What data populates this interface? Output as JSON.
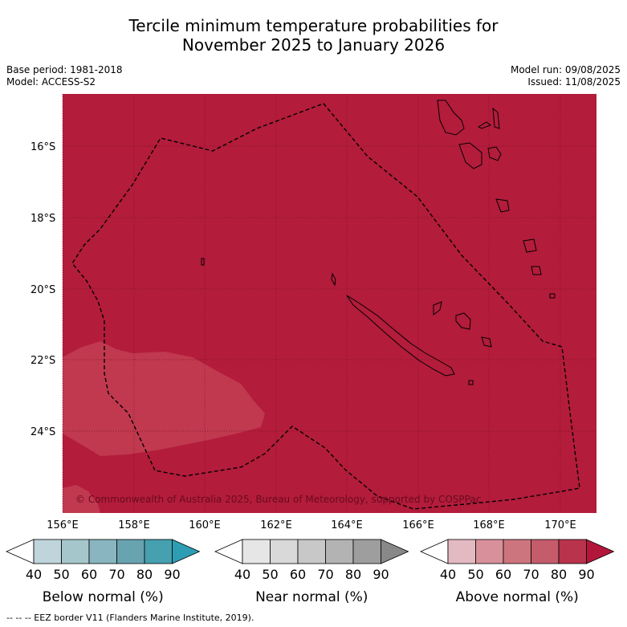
{
  "title_line1": "Tercile minimum temperature probabilities for",
  "title_line2": "November 2025 to January 2026",
  "meta_left": [
    "Base period: 1981-2018",
    "Model: ACCESS-S2"
  ],
  "meta_right": [
    "Model run: 09/08/2025",
    "Issued: 11/08/2025"
  ],
  "map": {
    "lat_labels": [
      "16°S",
      "18°S",
      "20°S",
      "22°S",
      "24°S"
    ],
    "lon_labels": [
      "156°E",
      "158°E",
      "160°E",
      "162°E",
      "164°E",
      "166°E",
      "168°E",
      "170°E"
    ],
    "copyright": "© Commonwealth of Australia 2025, Bureau of Meteorology, supported by COSPPac",
    "dominant_category": "Above normal",
    "dominant_color": "#b31c3b",
    "patch_color": "#c0394f"
  },
  "colorbars": [
    {
      "label": "Below normal (%)",
      "ticks": [
        "40",
        "50",
        "60",
        "70",
        "80",
        "90"
      ],
      "colors": [
        "#bfd5db",
        "#a5c7cc",
        "#88b5bf",
        "#68a3b0",
        "#45a0b0",
        "#2d9db3"
      ]
    },
    {
      "label": "Near normal (%)",
      "ticks": [
        "40",
        "50",
        "60",
        "70",
        "80",
        "90"
      ],
      "colors": [
        "#e6e6e6",
        "#d9d9d9",
        "#c8c8c8",
        "#b3b3b3",
        "#9e9e9e",
        "#888888"
      ]
    },
    {
      "label": "Above normal (%)",
      "ticks": [
        "40",
        "50",
        "60",
        "70",
        "80",
        "90"
      ],
      "colors": [
        "#e3b9c2",
        "#d8919a",
        "#cd757e",
        "#c45c6b",
        "#ba334c",
        "#b3163b"
      ]
    }
  ],
  "footer": "--  --  -- EEZ border V11 (Flanders Marine Institute, 2019)."
}
